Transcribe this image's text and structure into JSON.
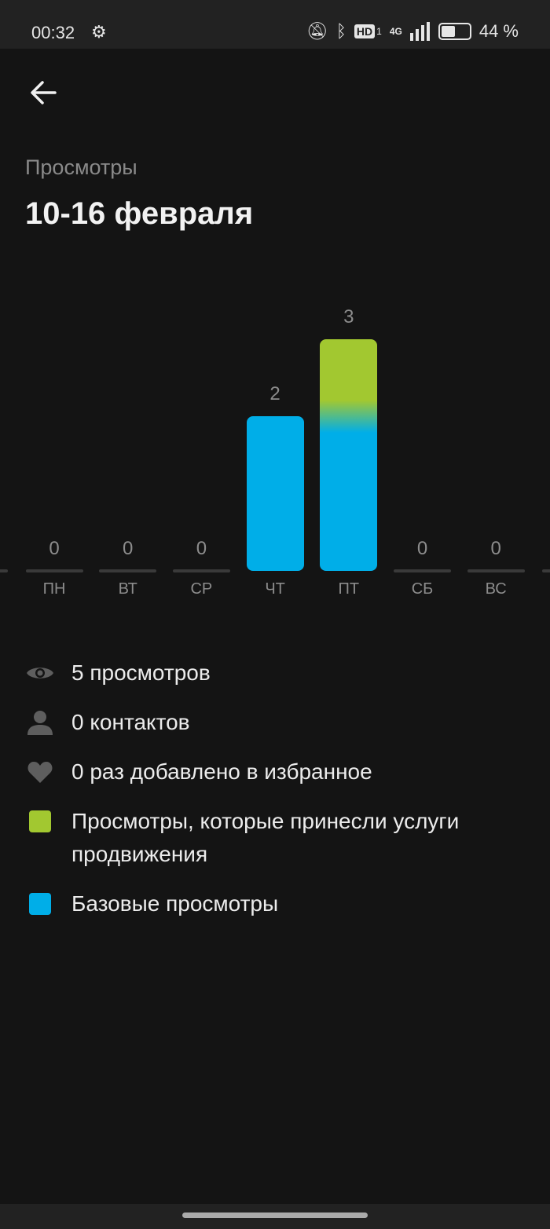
{
  "status_bar": {
    "time": "00:32",
    "battery": "44 %",
    "battery_level": 0.44,
    "network": "4G",
    "hd_label": "HD",
    "sim": "1"
  },
  "header": {
    "subtitle": "Просмотры",
    "title": "10-16 февраля"
  },
  "colors": {
    "base": "#00aee8",
    "promoted": "#a2c830",
    "background": "#141414"
  },
  "chart_data": {
    "type": "bar",
    "stacked": true,
    "categories": [
      "ПН",
      "ВТ",
      "СР",
      "ЧТ",
      "ПТ",
      "СБ",
      "ВС"
    ],
    "series": [
      {
        "name": "Базовые просмотры",
        "values": [
          0,
          0,
          0,
          2,
          2,
          0,
          0
        ]
      },
      {
        "name": "Просмотры, которые принесли услуги продвижения",
        "values": [
          0,
          0,
          0,
          0,
          1,
          0,
          0
        ]
      }
    ],
    "totals": [
      "0",
      "0",
      "0",
      "2",
      "3",
      "0",
      "0"
    ],
    "ylim": [
      0,
      3
    ]
  },
  "stats": [
    {
      "icon": "eye-icon",
      "text": "5 просмотров"
    },
    {
      "icon": "person-icon",
      "text": "0 контактов"
    },
    {
      "icon": "heart-icon",
      "text": "0 раз добавлено в избранное"
    }
  ],
  "legend": [
    {
      "color": "#a2c830",
      "text": "Просмотры, которые принесли услуги продвижения"
    },
    {
      "color": "#00aee8",
      "text": "Базовые просмотры"
    }
  ]
}
